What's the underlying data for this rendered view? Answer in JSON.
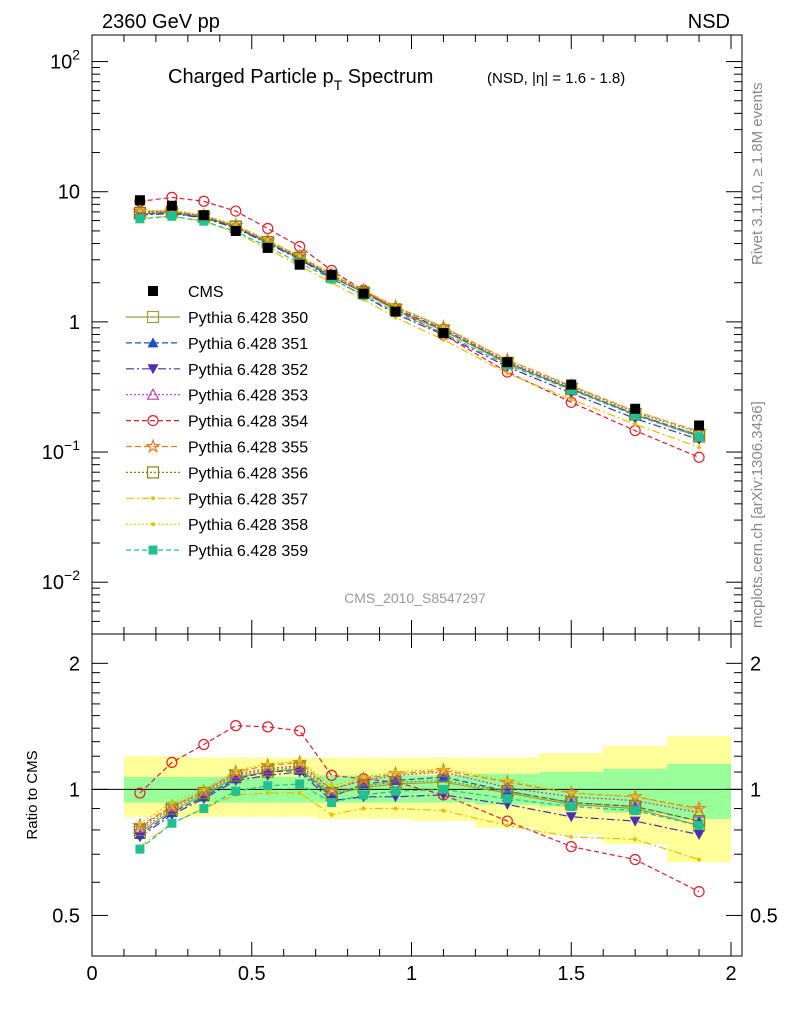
{
  "header": {
    "left": "2360 GeV pp",
    "right": "NSD"
  },
  "title": {
    "main_pre": "Charged Particle p",
    "main_sub": "T",
    "main_post": " Spectrum",
    "detail": "(NSD, |η| = 1.6 - 1.8)"
  },
  "side_labels": {
    "rivet": "Rivet 3.1.10, ≥ 1.8M events",
    "mcplots": "mcplots.cern.ch [arXiv:1306.3436]"
  },
  "analysis_id": "CMS_2010_S8547297",
  "ratio_ylabel": "Ratio to CMS",
  "colors": {
    "cms": "#000000",
    "p350": "#a89a3a",
    "p351": "#1f4fbf",
    "p352": "#4a2fb0",
    "p353": "#b540b0",
    "p354": "#e0202e",
    "p355": "#f07a20",
    "p356": "#7a8a10",
    "p357": "#e6c000",
    "p358": "#c8d000",
    "p359": "#20c090",
    "band_inner": "#99ff99",
    "band_outer": "#ffff99"
  },
  "chart_data": {
    "type": "line",
    "x": [
      0.15,
      0.25,
      0.35,
      0.45,
      0.55,
      0.65,
      0.75,
      0.85,
      0.95,
      1.1,
      1.3,
      1.5,
      1.7,
      1.9
    ],
    "xlim": [
      0,
      2
    ],
    "xticks": [
      {
        "v": 0,
        "label": "0"
      },
      {
        "v": 0.5,
        "label": "0.5"
      },
      {
        "v": 1,
        "label": "1"
      },
      {
        "v": 1.5,
        "label": "1.5"
      },
      {
        "v": 2,
        "label": "2"
      }
    ],
    "main_ylim": [
      0.004,
      160
    ],
    "main_yticks": [
      {
        "v": 100,
        "base": "10",
        "exp": "2"
      },
      {
        "v": 10,
        "base": "10",
        "exp": ""
      },
      {
        "v": 1,
        "base": "1",
        "exp": ""
      },
      {
        "v": 0.1,
        "base": "10",
        "exp": "−1"
      },
      {
        "v": 0.01,
        "base": "10",
        "exp": "−2"
      }
    ],
    "ratio_ylim": [
      0.4,
      2.35
    ],
    "ratio_yticks": [
      {
        "v": 0.5,
        "label": "0.5"
      },
      {
        "v": 1,
        "label": "1"
      },
      {
        "v": 2,
        "label": "2"
      }
    ],
    "cms": {
      "name": "CMS",
      "values": [
        8.6,
        7.8,
        6.6,
        5.0,
        3.7,
        2.75,
        2.3,
        1.65,
        1.2,
        0.82,
        0.49,
        0.33,
        0.215,
        0.16
      ]
    },
    "bands": [
      {
        "x0": 0.1,
        "x1": 0.2,
        "inner": [
          0.93,
          1.07
        ],
        "outer": [
          0.86,
          1.2
        ]
      },
      {
        "x0": 0.2,
        "x1": 0.3,
        "inner": [
          0.93,
          1.07
        ],
        "outer": [
          0.86,
          1.2
        ]
      },
      {
        "x0": 0.3,
        "x1": 0.4,
        "inner": [
          0.93,
          1.07
        ],
        "outer": [
          0.86,
          1.19
        ]
      },
      {
        "x0": 0.4,
        "x1": 0.5,
        "inner": [
          0.93,
          1.07
        ],
        "outer": [
          0.86,
          1.19
        ]
      },
      {
        "x0": 0.5,
        "x1": 0.6,
        "inner": [
          0.93,
          1.07
        ],
        "outer": [
          0.86,
          1.19
        ]
      },
      {
        "x0": 0.6,
        "x1": 0.7,
        "inner": [
          0.93,
          1.07
        ],
        "outer": [
          0.86,
          1.19
        ]
      },
      {
        "x0": 0.7,
        "x1": 0.8,
        "inner": [
          0.93,
          1.08
        ],
        "outer": [
          0.85,
          1.19
        ]
      },
      {
        "x0": 0.8,
        "x1": 0.9,
        "inner": [
          0.93,
          1.08
        ],
        "outer": [
          0.85,
          1.19
        ]
      },
      {
        "x0": 0.9,
        "x1": 1.0,
        "inner": [
          0.93,
          1.08
        ],
        "outer": [
          0.85,
          1.19
        ]
      },
      {
        "x0": 1.0,
        "x1": 1.2,
        "inner": [
          0.93,
          1.08
        ],
        "outer": [
          0.84,
          1.19
        ]
      },
      {
        "x0": 1.2,
        "x1": 1.4,
        "inner": [
          0.92,
          1.09
        ],
        "outer": [
          0.81,
          1.19
        ]
      },
      {
        "x0": 1.4,
        "x1": 1.6,
        "inner": [
          0.91,
          1.1
        ],
        "outer": [
          0.78,
          1.22
        ]
      },
      {
        "x0": 1.6,
        "x1": 1.8,
        "inner": [
          0.88,
          1.12
        ],
        "outer": [
          0.74,
          1.27
        ]
      },
      {
        "x0": 1.8,
        "x1": 2.0,
        "inner": [
          0.85,
          1.15
        ],
        "outer": [
          0.67,
          1.34
        ]
      }
    ],
    "series": [
      {
        "name": "Pythia 6.428 350",
        "key": "p350",
        "marker": "square-open",
        "dash": "",
        "ratio": [
          0.79,
          0.89,
          0.97,
          1.07,
          1.1,
          1.12,
          0.97,
          1.01,
          1.03,
          1.04,
          0.98,
          0.92,
          0.9,
          0.82
        ]
      },
      {
        "name": "Pythia 6.428 351",
        "key": "p351",
        "marker": "triangle-up",
        "dash": "6,3",
        "ratio": [
          0.78,
          0.88,
          0.96,
          1.06,
          1.1,
          1.11,
          0.96,
          1.03,
          1.05,
          1.07,
          0.99,
          0.93,
          0.91,
          0.84
        ]
      },
      {
        "name": "Pythia 6.428 352",
        "key": "p352",
        "marker": "triangle-down",
        "dash": "8,3,2,3",
        "ratio": [
          0.77,
          0.87,
          0.95,
          1.05,
          1.08,
          1.1,
          0.94,
          0.96,
          0.96,
          0.97,
          0.92,
          0.86,
          0.84,
          0.78
        ]
      },
      {
        "name": "Pythia 6.428 353",
        "key": "p353",
        "marker": "triangle-open",
        "dash": "2,2",
        "ratio": [
          0.81,
          0.91,
          0.99,
          1.09,
          1.12,
          1.14,
          1.0,
          1.05,
          1.08,
          1.1,
          1.01,
          0.96,
          0.94,
          0.88
        ]
      },
      {
        "name": "Pythia 6.428 354",
        "key": "p354",
        "marker": "circle-open",
        "dash": "5,3",
        "ratio": [
          0.98,
          1.16,
          1.28,
          1.42,
          1.41,
          1.38,
          1.08,
          1.06,
          1.04,
          0.97,
          0.84,
          0.73,
          0.68,
          0.57
        ]
      },
      {
        "name": "Pythia 6.428 355",
        "key": "p355",
        "marker": "star-open",
        "dash": "6,3",
        "ratio": [
          0.82,
          0.91,
          0.99,
          1.1,
          1.14,
          1.16,
          1.0,
          1.06,
          1.09,
          1.11,
          1.04,
          0.98,
          0.96,
          0.9
        ]
      },
      {
        "name": "Pythia 6.428 356",
        "key": "p356",
        "marker": "square-open",
        "dash": "2,2",
        "ratio": [
          0.8,
          0.9,
          0.98,
          1.08,
          1.11,
          1.13,
          0.98,
          1.02,
          1.04,
          1.05,
          0.99,
          0.93,
          0.91,
          0.84
        ]
      },
      {
        "name": "Pythia 6.428 357",
        "key": "p357",
        "marker": "dot",
        "dash": "8,3,2,3",
        "ratio": [
          0.73,
          0.83,
          0.9,
          0.97,
          0.98,
          0.98,
          0.87,
          0.9,
          0.9,
          0.89,
          0.82,
          0.77,
          0.76,
          0.68
        ]
      },
      {
        "name": "Pythia 6.428 358",
        "key": "p358",
        "marker": "dot",
        "dash": "2,2",
        "ratio": [
          0.83,
          0.93,
          1.0,
          1.11,
          1.15,
          1.17,
          1.02,
          1.07,
          1.1,
          1.12,
          1.05,
          0.98,
          0.96,
          0.89
        ]
      },
      {
        "name": "Pythia 6.428 359",
        "key": "p359",
        "marker": "square",
        "dash": "5,3",
        "ratio": [
          0.72,
          0.83,
          0.9,
          0.99,
          1.02,
          1.03,
          0.93,
          0.97,
          0.99,
          1.0,
          0.95,
          0.91,
          0.89,
          0.82
        ]
      }
    ]
  }
}
